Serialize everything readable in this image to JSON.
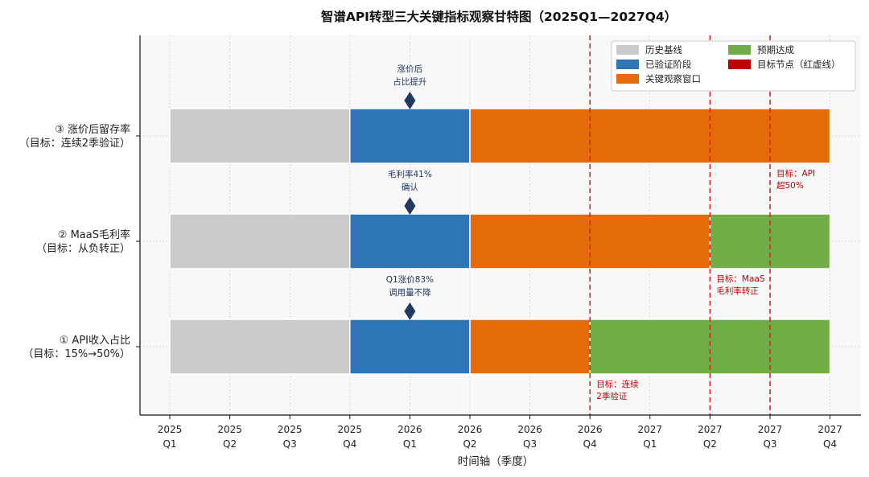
{
  "chart_data": {
    "type": "gantt",
    "title": "智谱API转型三大关键指标观察甘特图（2025Q1—2027Q4）",
    "xlabel": "时间轴（季度）",
    "x_ticks": [
      [
        "2025",
        "Q1"
      ],
      [
        "2025",
        "Q2"
      ],
      [
        "2025",
        "Q3"
      ],
      [
        "2025",
        "Q4"
      ],
      [
        "2026",
        "Q1"
      ],
      [
        "2026",
        "Q2"
      ],
      [
        "2026",
        "Q3"
      ],
      [
        "2026",
        "Q4"
      ],
      [
        "2027",
        "Q1"
      ],
      [
        "2027",
        "Q2"
      ],
      [
        "2027",
        "Q3"
      ],
      [
        "2027",
        "Q4"
      ]
    ],
    "legend": [
      {
        "label": "历史基线",
        "color": "#cbcbcb"
      },
      {
        "label": "已验证阶段",
        "color": "#2e75b6"
      },
      {
        "label": "关键观察窗口",
        "color": "#e36c09"
      },
      {
        "label": "预期达成",
        "color": "#70ad47"
      },
      {
        "label": "目标节点（红虚线）",
        "color": "#c00000"
      }
    ],
    "legend_placement": "top-right",
    "rows": [
      {
        "label_lines": [
          "③ 涨价后留存率",
          "（目标：连续2季验证）"
        ],
        "segments": [
          {
            "phase": "历史基线",
            "start": "2025Q1",
            "end": "2025Q4"
          },
          {
            "phase": "已验证阶段",
            "start": "2025Q4",
            "end": "2026Q2"
          },
          {
            "phase": "关键观察窗口",
            "start": "2026Q2",
            "end": "2027Q4"
          }
        ],
        "milestone": {
          "at": "2026Q1",
          "lines": [
            "涨价后",
            "占比提升"
          ]
        },
        "target": {
          "at": "2027Q3",
          "lines": [
            "目标：API",
            "超50%"
          ]
        }
      },
      {
        "label_lines": [
          "② MaaS毛利率",
          "（目标：从负转正）"
        ],
        "segments": [
          {
            "phase": "历史基线",
            "start": "2025Q1",
            "end": "2025Q4"
          },
          {
            "phase": "已验证阶段",
            "start": "2025Q4",
            "end": "2026Q2"
          },
          {
            "phase": "关键观察窗口",
            "start": "2026Q2",
            "end": "2027Q2"
          },
          {
            "phase": "预期达成",
            "start": "2027Q2",
            "end": "2027Q4"
          }
        ],
        "milestone": {
          "at": "2026Q1",
          "lines": [
            "毛利率41%",
            "确认"
          ]
        },
        "target": {
          "at": "2027Q2",
          "lines": [
            "目标：MaaS",
            "毛利率转正"
          ]
        }
      },
      {
        "label_lines": [
          "① API收入占比",
          "（目标：15%→50%）"
        ],
        "segments": [
          {
            "phase": "历史基线",
            "start": "2025Q1",
            "end": "2025Q4"
          },
          {
            "phase": "已验证阶段",
            "start": "2025Q4",
            "end": "2026Q2"
          },
          {
            "phase": "关键观察窗口",
            "start": "2026Q2",
            "end": "2026Q4"
          },
          {
            "phase": "预期达成",
            "start": "2026Q4",
            "end": "2027Q4"
          }
        ],
        "milestone": {
          "at": "2026Q1",
          "lines": [
            "Q1涨价83%",
            "调用量不降"
          ]
        },
        "target": {
          "at": "2026Q4",
          "lines": [
            "目标：连续",
            "2季验证"
          ]
        }
      }
    ],
    "target_lines": [
      "2026Q4",
      "2027Q2",
      "2027Q3"
    ],
    "grid": true
  }
}
